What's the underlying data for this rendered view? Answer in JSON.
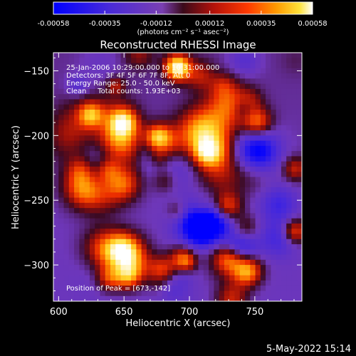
{
  "colorbar": {
    "tick_labels": [
      "-0.00058",
      "-0.00035",
      "-0.00012",
      "0.00012",
      "0.00035",
      "0.00058"
    ],
    "tick_values": [
      -0.00058,
      -0.00035,
      -0.00012,
      0.00012,
      0.00035,
      0.00058
    ],
    "range": [
      -0.00058,
      0.00058
    ],
    "units_label": "(photons cm⁻² s⁻¹ asec⁻²)",
    "colors": [
      "#0000ff",
      "#5a2cc8",
      "#7a3fb2",
      "#5b0f2a",
      "#c0140a",
      "#ff3a00",
      "#ff9a00",
      "#ffe23a",
      "#ffffff"
    ]
  },
  "chart_data": {
    "type": "heatmap",
    "title": "Reconstructed RHESSI Image",
    "xlabel": "Heliocentric X (arcsec)",
    "ylabel": "Heliocentric Y (arcsec)",
    "xlim": [
      596,
      786
    ],
    "ylim": [
      -328,
      -136
    ],
    "x_ticks": [
      600,
      650,
      700,
      750
    ],
    "y_ticks": [
      -150,
      -200,
      -250,
      -300
    ],
    "x_tick_labels": [
      "600",
      "650",
      "700",
      "750"
    ],
    "y_tick_labels": [
      "−150",
      "−200",
      "−250",
      "−300"
    ],
    "grid": false,
    "peak": {
      "x": 673,
      "y": -142
    }
  },
  "annotations": {
    "line1": "25-Jan-2006 10:29:00.000 to 10:31:00.000",
    "line2": "Detectors: 3F 4F 5F 6F 7F 8F, Att 0",
    "line3": "Energy Range: 25.0 - 50.0 keV",
    "line4": "Clean     Total counts: 1.93E+03",
    "peak_text": "Position of Peak = [673,-142]"
  },
  "footer": {
    "timestamp": "5-May-2022 15:14"
  }
}
